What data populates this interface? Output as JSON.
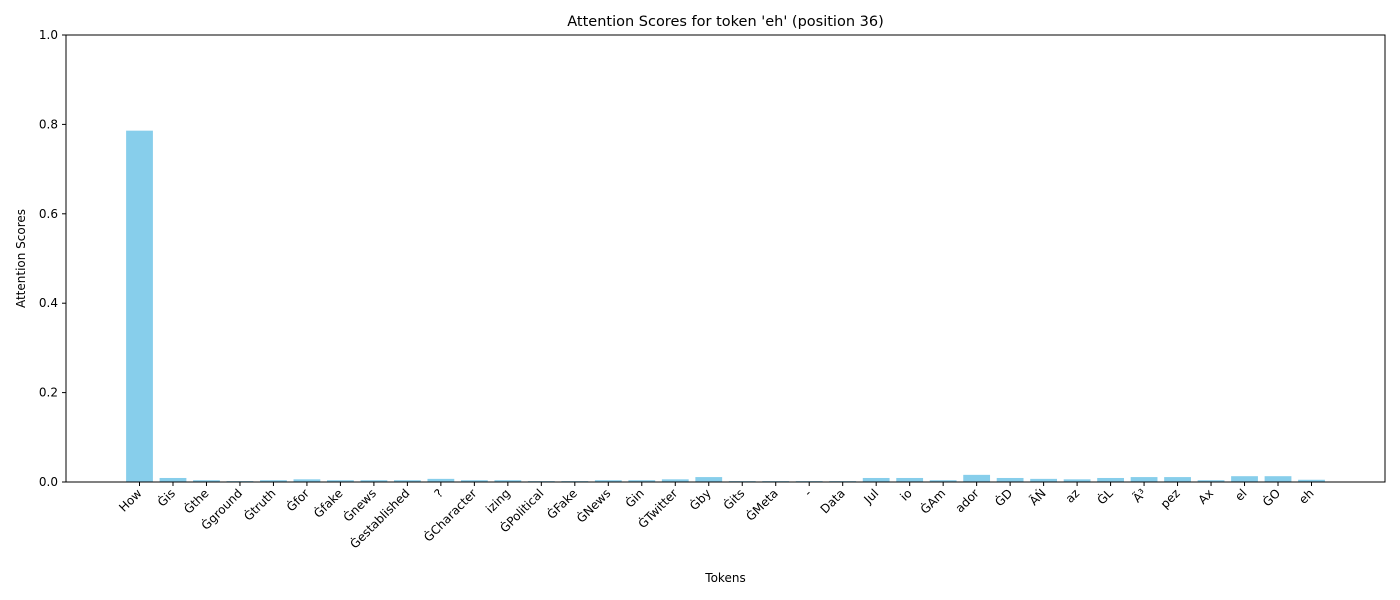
{
  "chart_data": {
    "type": "bar",
    "title": "Attention Scores for token 'eh' (position 36)",
    "xlabel": "Tokens",
    "ylabel": "Attention Scores",
    "ylim": [
      0,
      1.0
    ],
    "yticks": [
      "0.0",
      "0.2",
      "0.4",
      "0.6",
      "0.8",
      "1.0"
    ],
    "grid": false,
    "bar_color": "#87ceeb",
    "categories": [
      "How",
      "Ġis",
      "Ġthe",
      "Ġground",
      "Ġtruth",
      "Ġfor",
      "Ġfake",
      "Ġnews",
      "Ġestablished",
      "?",
      "ĠCharacter",
      "izing",
      "ĠPolitical",
      "ĠFake",
      "ĠNews",
      "Ġin",
      "ĠTwitter",
      "Ġby",
      "Ġits",
      "ĠMeta",
      "-",
      "Data",
      "Jul",
      "io",
      "ĠAm",
      "ador",
      "ĠD",
      "ÃŃ",
      "az",
      "ĠL",
      "Ã³",
      "pez",
      "Ax",
      "el",
      "ĠO",
      "eh"
    ],
    "values": [
      0.786,
      0.009,
      0.004,
      0.002,
      0.004,
      0.006,
      0.004,
      0.004,
      0.004,
      0.007,
      0.004,
      0.004,
      0.002,
      0.002,
      0.004,
      0.004,
      0.006,
      0.011,
      0.002,
      0.002,
      0.002,
      0.002,
      0.009,
      0.009,
      0.004,
      0.016,
      0.009,
      0.007,
      0.006,
      0.009,
      0.011,
      0.011,
      0.004,
      0.013,
      0.013,
      0.005
    ]
  }
}
